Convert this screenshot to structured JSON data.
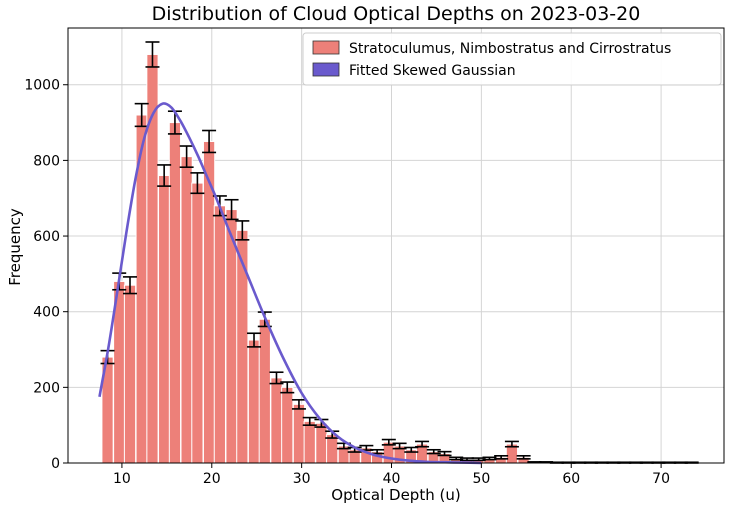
{
  "chart_data": {
    "type": "bar",
    "title": "Distribution of Cloud Optical Depths on 2023-03-20",
    "xlabel": "Optical Depth (u)",
    "ylabel": "Frequency",
    "xlim": [
      4,
      77
    ],
    "ylim": [
      0,
      1150
    ],
    "xticks": [
      10,
      20,
      30,
      40,
      50,
      60,
      70
    ],
    "yticks": [
      0,
      200,
      400,
      600,
      800,
      1000
    ],
    "grid": true,
    "legend_position": "top-right",
    "bin_width": 1.25,
    "series": [
      {
        "name": "Stratoculumus, Nimbostratus and Cirrostratus",
        "type": "histogram",
        "color": "#ed8079",
        "edge_color": "#ffffff",
        "error_bar_color": "#000000",
        "bin_centers": [
          8.4,
          9.7,
          10.9,
          12.2,
          13.4,
          14.7,
          15.9,
          17.2,
          18.4,
          19.7,
          20.9,
          22.2,
          23.4,
          24.7,
          25.9,
          27.2,
          28.4,
          29.7,
          30.9,
          32.2,
          33.4,
          34.7,
          35.9,
          37.2,
          38.4,
          39.7,
          40.9,
          42.2,
          43.4,
          44.7,
          45.9,
          47.2,
          48.4,
          49.7,
          50.9,
          52.2,
          53.4,
          54.7,
          55.9,
          57.2,
          58.4,
          59.7,
          60.9,
          62.2,
          63.4,
          64.7,
          65.9,
          67.2,
          68.4,
          69.7,
          70.9,
          72.2,
          73.4
        ],
        "values": [
          280,
          480,
          470,
          920,
          1080,
          760,
          900,
          810,
          740,
          850,
          680,
          670,
          615,
          325,
          380,
          225,
          200,
          155,
          110,
          105,
          75,
          45,
          35,
          40,
          30,
          55,
          45,
          35,
          50,
          30,
          25,
          12,
          10,
          10,
          12,
          15,
          50,
          15,
          2,
          2,
          1,
          1,
          1,
          1,
          1,
          1,
          1,
          1,
          1,
          1,
          1,
          1,
          1
        ],
        "errors": [
          17,
          22,
          22,
          30,
          33,
          28,
          30,
          28,
          27,
          29,
          26,
          26,
          25,
          18,
          19,
          15,
          14,
          12,
          10,
          10,
          9,
          7,
          6,
          6,
          5,
          7,
          7,
          6,
          7,
          5,
          5,
          3,
          3,
          3,
          3,
          4,
          7,
          4,
          1,
          1,
          1,
          1,
          1,
          1,
          1,
          1,
          1,
          1,
          1,
          1,
          1,
          1,
          1
        ]
      },
      {
        "name": "Fitted Skewed Gaussian",
        "type": "line",
        "color": "#6a5acd",
        "x": [
          7.5,
          8.5,
          9.5,
          10.5,
          11.5,
          12.5,
          13.5,
          14.5,
          15.5,
          16.5,
          17.5,
          18.5,
          19.5,
          20.5,
          22,
          24,
          26,
          28,
          30,
          32,
          34,
          36,
          38,
          40,
          42,
          44,
          46,
          48,
          50
        ],
        "y": [
          175,
          305,
          455,
          610,
          750,
          860,
          925,
          950,
          940,
          905,
          860,
          810,
          755,
          700,
          610,
          495,
          380,
          275,
          185,
          118,
          70,
          40,
          22,
          12,
          6,
          3,
          2,
          1,
          0
        ]
      }
    ]
  }
}
